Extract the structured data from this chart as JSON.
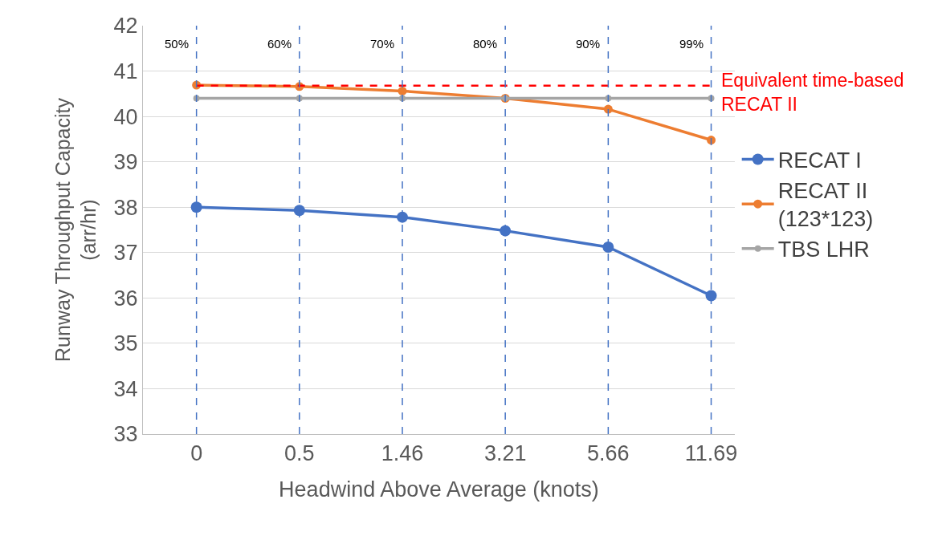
{
  "chart_data": {
    "type": "line",
    "xlabel": "Headwind Above Average (knots)",
    "ylabel": "Runway Throughput Capacity\n(arr/hr)",
    "categories": [
      "0",
      "0.5",
      "1.46",
      "3.21",
      "5.66",
      "11.69"
    ],
    "series": [
      {
        "name": "RECAT I",
        "color": "#4472c4",
        "values": [
          38.0,
          37.93,
          37.78,
          37.48,
          37.12,
          36.05
        ]
      },
      {
        "name": "RECAT II\n(123*123)",
        "color": "#ed7d31",
        "values": [
          40.69,
          40.66,
          40.56,
          40.4,
          40.16,
          39.48
        ]
      },
      {
        "name": "TBS LHR",
        "color": "#a5a5a5",
        "values": [
          40.4,
          40.4,
          40.4,
          40.4,
          40.4,
          40.4
        ]
      }
    ],
    "ylim": [
      33,
      42
    ],
    "yticks": [
      33,
      34,
      35,
      36,
      37,
      38,
      39,
      40,
      41,
      42
    ],
    "grid": "y",
    "legend": "right",
    "marker": "circle",
    "line_style": "solid",
    "ref_lines": [
      {
        "axis": "y",
        "value": 40.68,
        "label": "Equivalent time-based\nRECAT II",
        "color": "#ff0000",
        "line_style": "dashed"
      },
      {
        "axis": "x",
        "value": "0",
        "label": "50%",
        "color": "#4472c4",
        "line_style": "dashed"
      },
      {
        "axis": "x",
        "value": "0.5",
        "label": "60%",
        "color": "#4472c4",
        "line_style": "dashed"
      },
      {
        "axis": "x",
        "value": "1.46",
        "label": "70%",
        "color": "#4472c4",
        "line_style": "dashed"
      },
      {
        "axis": "x",
        "value": "3.21",
        "label": "80%",
        "color": "#4472c4",
        "line_style": "dashed"
      },
      {
        "axis": "x",
        "value": "5.66",
        "label": "90%",
        "color": "#4472c4",
        "line_style": "dashed"
      },
      {
        "axis": "x",
        "value": "11.69",
        "label": "99%",
        "color": "#4472c4",
        "line_style": "dashed"
      }
    ]
  }
}
